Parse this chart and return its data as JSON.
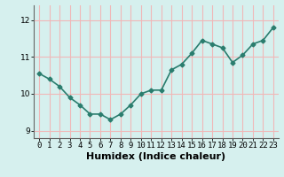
{
  "x": [
    0,
    1,
    2,
    3,
    4,
    5,
    6,
    7,
    8,
    9,
    10,
    11,
    12,
    13,
    14,
    15,
    16,
    17,
    18,
    19,
    20,
    21,
    22,
    23
  ],
  "y": [
    10.55,
    10.4,
    10.2,
    9.9,
    9.7,
    9.45,
    9.45,
    9.3,
    9.45,
    9.7,
    10.0,
    10.1,
    10.1,
    10.65,
    10.8,
    11.1,
    11.45,
    11.35,
    11.25,
    10.85,
    11.05,
    11.35,
    11.45,
    11.8
  ],
  "line_color": "#2a7d6e",
  "marker": "D",
  "marker_size": 2.5,
  "bg_color": "#d6f0ee",
  "grid_color": "#f0b8b8",
  "xlabel": "Humidex (Indice chaleur)",
  "xlabel_fontsize": 8,
  "ylim": [
    8.8,
    12.4
  ],
  "yticks": [
    9,
    10,
    11,
    12
  ],
  "xticks": [
    0,
    1,
    2,
    3,
    4,
    5,
    6,
    7,
    8,
    9,
    10,
    11,
    12,
    13,
    14,
    15,
    16,
    17,
    18,
    19,
    20,
    21,
    22,
    23
  ],
  "tick_fontsize": 6.5,
  "linewidth": 1.2
}
